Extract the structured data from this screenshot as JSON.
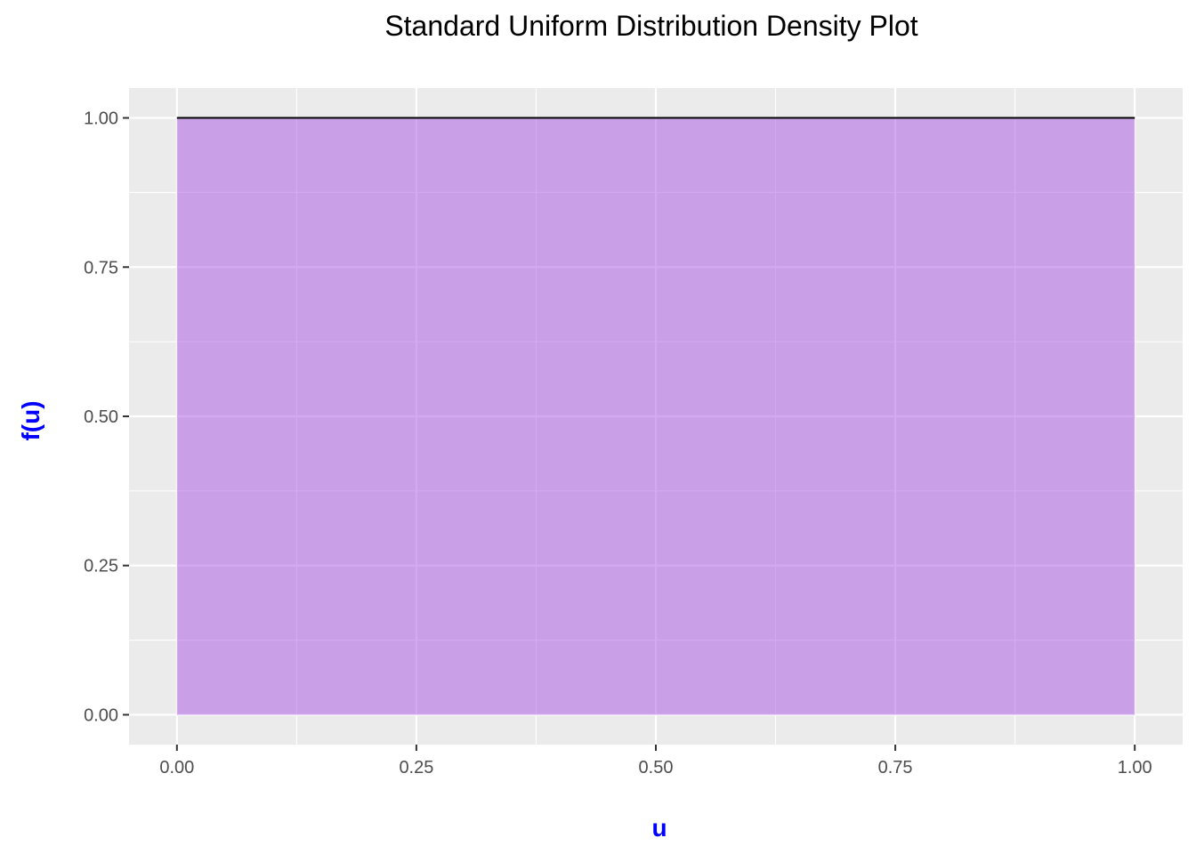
{
  "chart_data": {
    "type": "area",
    "title": "Standard Uniform Distribution Density Plot",
    "xlabel": "u",
    "ylabel": "f(u)",
    "x": [
      0.0,
      1.0
    ],
    "y": [
      1.0,
      1.0
    ],
    "xlim": [
      -0.05,
      1.05
    ],
    "ylim": [
      -0.05,
      1.05
    ],
    "x_ticks": [
      0.0,
      0.25,
      0.5,
      0.75,
      1.0
    ],
    "x_tick_labels": [
      "0.00",
      "0.25",
      "0.50",
      "0.75",
      "1.00"
    ],
    "y_ticks": [
      0.0,
      0.25,
      0.5,
      0.75,
      1.0
    ],
    "y_tick_labels": [
      "0.00",
      "0.25",
      "0.50",
      "0.75",
      "1.00"
    ],
    "grid": true,
    "legend": "none",
    "colors": {
      "fill": "#a855e6",
      "fill_opacity": 0.5,
      "line": "#000000",
      "panel_bg": "#ebebeb",
      "grid": "#ffffff",
      "axis_title": "#0000ff"
    }
  }
}
